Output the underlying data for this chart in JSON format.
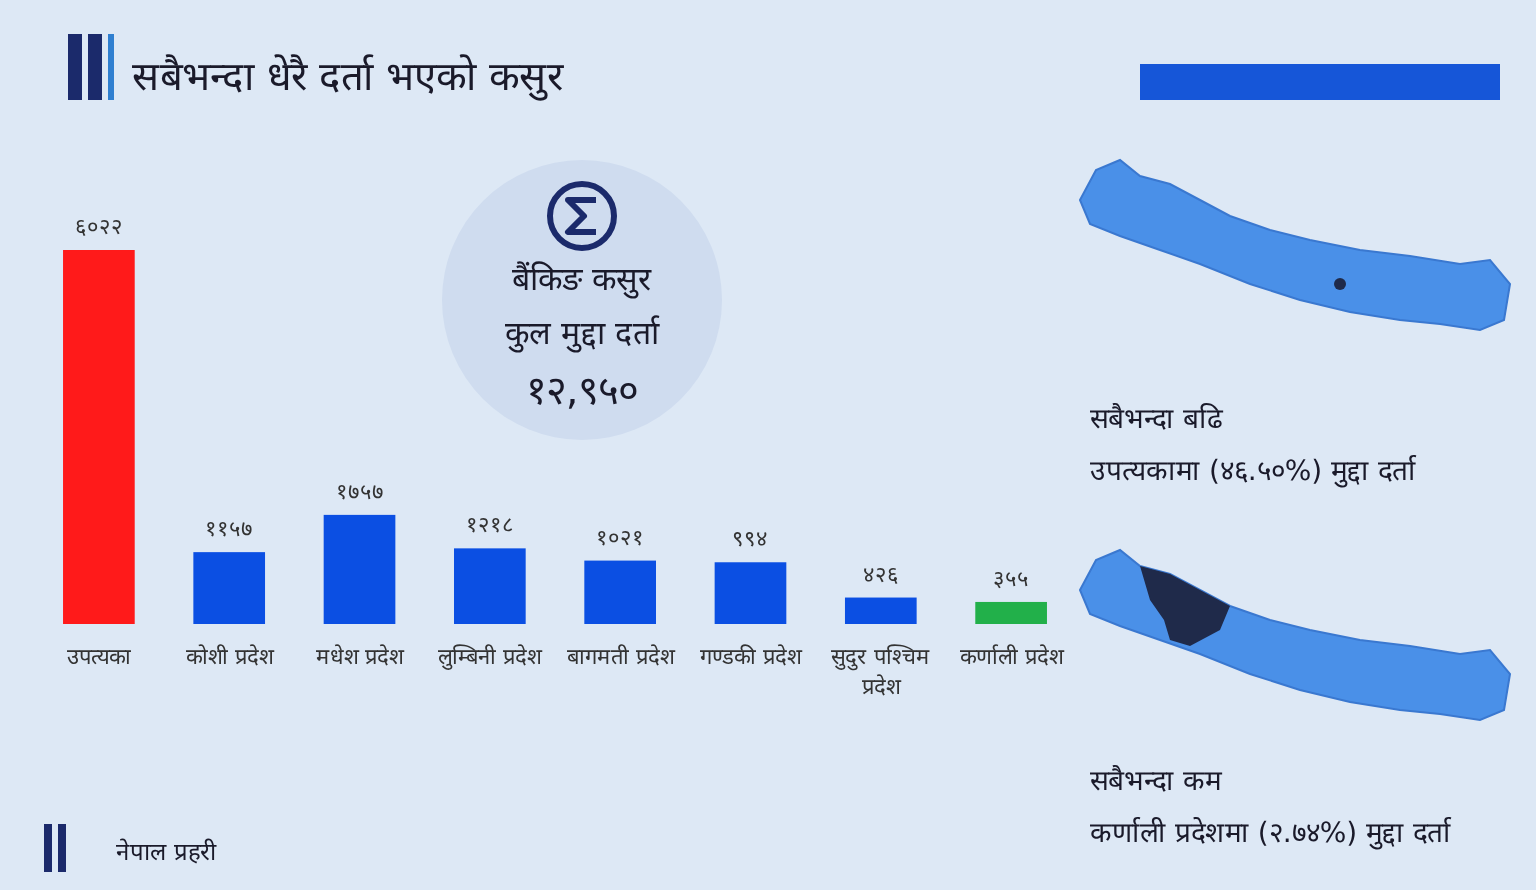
{
  "chart_data": {
    "type": "bar",
    "title": "सबैभन्दा धेरै दर्ता भएको कसुर",
    "categories": [
      "उपत्यका",
      "कोशी प्रदेश",
      "मधेश प्रदेश",
      "लुम्बिनी प्रदेश",
      "बागमती प्रदेश",
      "गण्डकी प्रदेश",
      "सुदुर पश्चिम प्रदेश",
      "कर्णाली प्रदेश"
    ],
    "values": [
      6022,
      1157,
      1757,
      1218,
      1021,
      994,
      426,
      355
    ],
    "colors": [
      "#ff1a1a",
      "#0b4fe3",
      "#0b4fe3",
      "#0b4fe3",
      "#0b4fe3",
      "#0b4fe3",
      "#0b4fe3",
      "#22b04a"
    ],
    "value_labels": [
      "६०२२",
      "११५७",
      "१७५७",
      "१२१८",
      "१०२१",
      "९९४",
      "४२६",
      "३५५"
    ],
    "annotations": [
      "बैंकिङ कसुर",
      "कुल मुद्दा दर्ता",
      "१२,९५०",
      "सबैभन्दा बढि",
      "उपत्यकामा (४६.५०%) मुद्दा दर्ता",
      "सबैभन्दा कम",
      "कर्णाली प्रदेशमा (२.७४%) मुद्दा दर्ता",
      "नेपाल प्रहरी"
    ],
    "data_labels": false
  }
}
